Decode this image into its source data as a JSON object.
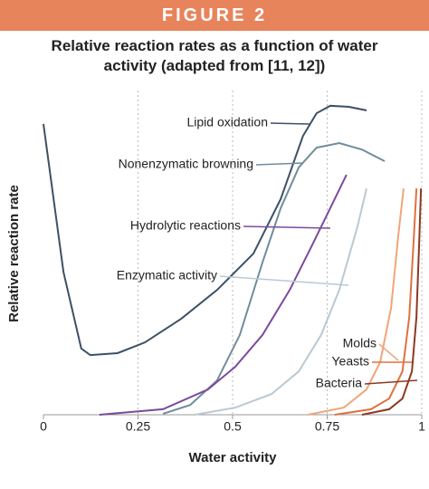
{
  "header": "FIGURE 2",
  "chart_data": {
    "type": "line",
    "title": "Relative reaction rates as a function of water activity (adapted from [11, 12])",
    "x_label": "Water activity",
    "y_label": "Relative reaction rate",
    "xlim": [
      0,
      1
    ],
    "xticks": [
      0,
      0.25,
      0.5,
      0.75,
      1
    ],
    "ylim": [
      0,
      100
    ],
    "grid": true,
    "series": [
      {
        "name": "Lipid oxidation",
        "color": "#3e5063",
        "x": [
          0,
          0.053,
          0.1,
          0.124,
          0.196,
          0.268,
          0.364,
          0.459,
          0.555,
          0.627,
          0.686,
          0.722,
          0.758,
          0.806,
          0.854
        ],
        "values": [
          89.7,
          44,
          20.4,
          18.4,
          19,
          22.3,
          29.6,
          38.5,
          49.7,
          66.5,
          86,
          93,
          95.3,
          95,
          93.9
        ]
      },
      {
        "name": "Nonenzymatic browning",
        "color": "#6f8c9c",
        "x": [
          0.316,
          0.388,
          0.459,
          0.519,
          0.579,
          0.627,
          0.675,
          0.722,
          0.782,
          0.842,
          0.902
        ],
        "values": [
          0.3,
          3,
          10.6,
          24.6,
          47,
          63.7,
          76.3,
          82.4,
          83.8,
          81.8,
          78.2
        ]
      },
      {
        "name": "Hydrolytic reactions",
        "color": "#7a4a9c",
        "x": [
          0.148,
          0.316,
          0.435,
          0.507,
          0.579,
          0.651,
          0.711,
          0.758,
          0.801
        ],
        "values": [
          0,
          1.7,
          7.8,
          14.8,
          24.6,
          38.5,
          52.5,
          63.7,
          74
        ]
      },
      {
        "name": "Enzymatic activity",
        "color": "#b9c9d4",
        "x": [
          0.4,
          0.507,
          0.603,
          0.675,
          0.734,
          0.782,
          0.83,
          0.854
        ],
        "values": [
          0,
          2.2,
          6.4,
          13.4,
          24.6,
          38.5,
          58,
          69.8
        ]
      },
      {
        "name": "Molds",
        "color": "#f0a57a",
        "x": [
          0.699,
          0.794,
          0.854,
          0.89,
          0.919,
          0.938,
          0.952
        ],
        "values": [
          0,
          2.2,
          7.8,
          16.2,
          33,
          55.3,
          69.8
        ]
      },
      {
        "name": "Yeasts",
        "color": "#e0713f",
        "x": [
          0.77,
          0.866,
          0.914,
          0.949,
          0.967,
          0.978,
          0.986
        ],
        "values": [
          0,
          1.7,
          5,
          13.4,
          30.2,
          52.5,
          69.8
        ]
      },
      {
        "name": "Bacteria",
        "color": "#8c3a22",
        "x": [
          0.842,
          0.914,
          0.949,
          0.974,
          0.986,
          0.993,
          0.998
        ],
        "values": [
          0,
          1.7,
          5,
          13.4,
          30.2,
          52.5,
          69.8
        ]
      }
    ]
  }
}
